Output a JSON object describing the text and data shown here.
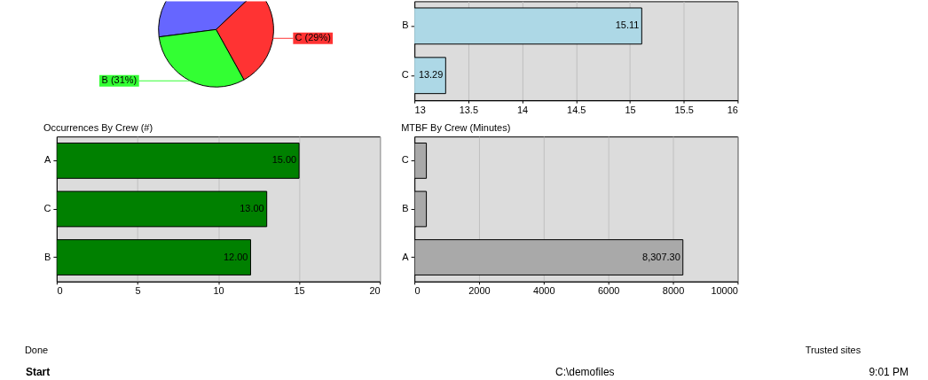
{
  "chart_data": [
    {
      "type": "pie",
      "categories": [
        null,
        "C (29%)",
        "B (31%)"
      ],
      "values": [
        40,
        29,
        31
      ],
      "colors": [
        "#6666ff",
        "#ff3333",
        "#33ff33"
      ]
    },
    {
      "type": "bar",
      "orientation": "horizontal",
      "categories": [
        "B",
        "C"
      ],
      "values": [
        15.11,
        13.29
      ],
      "color": "#add8e6",
      "xlim": [
        13,
        16
      ],
      "xticks": [
        13,
        13.5,
        14,
        14.5,
        15,
        15.5,
        16
      ],
      "grid": "x",
      "data_labels": true
    },
    {
      "type": "bar",
      "orientation": "horizontal",
      "title": "Occurrences By Crew (#)",
      "categories": [
        "A",
        "C",
        "B"
      ],
      "values": [
        15,
        13,
        12
      ],
      "value_labels": [
        "15.00",
        "13.00",
        "12.00"
      ],
      "color": "#008000",
      "xlim": [
        0,
        20
      ],
      "xticks": [
        0,
        5,
        10,
        15,
        20
      ],
      "grid": "x"
    },
    {
      "type": "bar",
      "orientation": "horizontal",
      "title": "MTBF By Crew (Minutes)",
      "categories": [
        "C",
        "B",
        "A"
      ],
      "values": [
        370,
        370,
        8307.3
      ],
      "value_labels": [
        null,
        null,
        "8,307.30"
      ],
      "color": "#a9a9a9",
      "xlim": [
        0,
        10000
      ],
      "xticks": [
        0,
        2000,
        4000,
        6000,
        8000,
        10000
      ],
      "grid": "x"
    },
    {
      "type": "other",
      "annotations": [
        "Done",
        "Trusted sites"
      ]
    },
    {
      "type": "other",
      "annotations": [
        "Start",
        "C:\\demofiles",
        "9:01 PM"
      ]
    }
  ]
}
